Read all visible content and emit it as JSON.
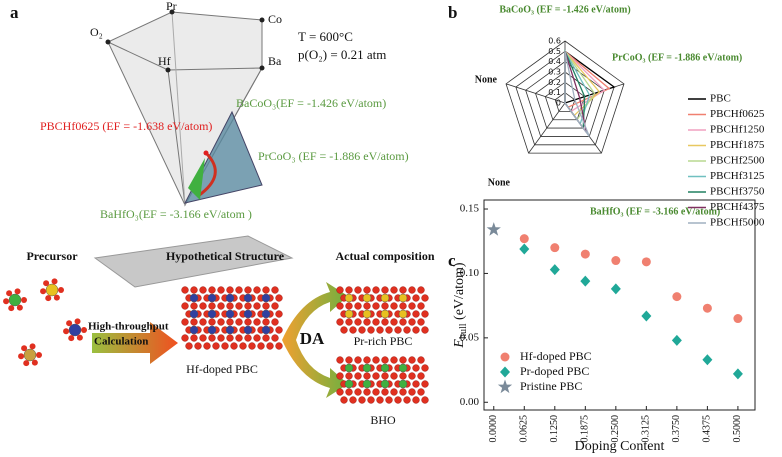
{
  "panel_a": {
    "label": "a",
    "vertices": [
      "Pr",
      "Co",
      "O₂",
      "Hf",
      "Ba"
    ],
    "conditions": [
      "T = 600°C",
      "p(O₂) = 0.21 atm"
    ],
    "phases": [
      {
        "text": "BaCoO₃(EF = -1.426 eV/atom)",
        "color": "#5a9a40"
      },
      {
        "text": "PBCHf0625 (EF = -1.638 eV/atom)",
        "color": "#e02020"
      },
      {
        "text": "PrCoO₃ (EF = -1.886 eV/atom)",
        "color": "#5a9a40"
      },
      {
        "text": "BaHfO₃(EF = -3.166 eV/atom )",
        "color": "#5a9a40"
      }
    ],
    "workflow": {
      "steps": [
        "Precursor",
        "Hypothetical Structure",
        "Actual composition"
      ],
      "calc": [
        "High-throughput",
        "Calculation"
      ],
      "da": "DA",
      "products": [
        "Hf-doped PBC",
        "Pr-rich PBC",
        "BHO"
      ]
    }
  },
  "chart_data": [
    {
      "type": "radar",
      "label": "b",
      "categories": [
        "BaCoO₃ (EF = -1.426 eV/atom)",
        "PrCoO₃ (EF = -1.886 eV/atom)",
        "BaHfO₃ (EF = -3.166 eV/atom)",
        "None",
        "None"
      ],
      "category_color": "#4a8a30",
      "rlim": [
        0,
        0.6
      ],
      "rticks": [
        0,
        0.1,
        0.2,
        0.3,
        0.4,
        0.5,
        0.6
      ],
      "series": [
        {
          "name": "PBC",
          "color": "#000000",
          "values": [
            0.5,
            0.5,
            0,
            0,
            0
          ]
        },
        {
          "name": "PBCHf0625",
          "color": "#f08070",
          "values": [
            0.5,
            0.45,
            0.05,
            0,
            0
          ]
        },
        {
          "name": "PBCHf1250",
          "color": "#f0a0c0",
          "values": [
            0.5,
            0.4,
            0.1,
            0,
            0
          ]
        },
        {
          "name": "PBCHf1875",
          "color": "#e8c860",
          "values": [
            0.5,
            0.35,
            0.15,
            0,
            0
          ]
        },
        {
          "name": "PBCHf2500",
          "color": "#b8d890",
          "values": [
            0.5,
            0.3,
            0.2,
            0,
            0
          ]
        },
        {
          "name": "PBCHf3125",
          "color": "#70c0c0",
          "values": [
            0.5,
            0.25,
            0.25,
            0,
            0
          ]
        },
        {
          "name": "PBCHf3750",
          "color": "#208060",
          "values": [
            0.5,
            0.2,
            0.3,
            0,
            0
          ]
        },
        {
          "name": "PBCHf4375",
          "color": "#803060",
          "values": [
            0.5,
            0.15,
            0.35,
            0,
            0
          ]
        },
        {
          "name": "PBCHf5000",
          "color": "#a0b0c0",
          "values": [
            0.5,
            0.1,
            0.4,
            0,
            0
          ]
        }
      ]
    },
    {
      "type": "scatter",
      "label": "c",
      "xlabel": "Doping Content",
      "ylabel": [
        "E",
        "hull",
        " (eV/atom)"
      ],
      "xlim": [
        -0.02,
        0.535
      ],
      "ylim": [
        -0.006,
        0.157
      ],
      "xticks": [
        {
          "value": 0,
          "label": "0.0000"
        },
        0.0625,
        {
          "value": 0.125,
          "label": "0.1250"
        },
        0.1875,
        {
          "value": 0.25,
          "label": "0.2500"
        },
        0.3125,
        {
          "value": 0.375,
          "label": "0.3750"
        },
        0.4375,
        {
          "value": 0.5,
          "label": "0.5000"
        }
      ],
      "yticks": [
        {
          "value": 0,
          "label": "0.00"
        },
        0.05,
        {
          "value": 0.1,
          "label": "0.10"
        },
        0.15
      ],
      "legend": "lower left",
      "series": [
        {
          "name": "Hf-doped PBC",
          "marker": "circle",
          "color": "#f08070",
          "x": [
            0.0625,
            0.125,
            0.1875,
            0.25,
            0.3125,
            0.375,
            0.4375,
            0.5
          ],
          "values": [
            0.127,
            0.12,
            0.115,
            0.11,
            0.109,
            0.082,
            0.073,
            0.065
          ]
        },
        {
          "name": "Pr-doped PBC",
          "marker": "diamond",
          "color": "#20a898",
          "x": [
            0.0625,
            0.125,
            0.1875,
            0.25,
            0.3125,
            0.375,
            0.4375,
            0.5
          ],
          "values": [
            0.119,
            0.103,
            0.094,
            0.088,
            0.067,
            0.048,
            0.033,
            0.022
          ]
        },
        {
          "name": "Pristine PBC",
          "marker": "star",
          "color": "#7a8a99",
          "x": [
            0
          ],
          "values": [
            0.134
          ]
        }
      ]
    }
  ]
}
